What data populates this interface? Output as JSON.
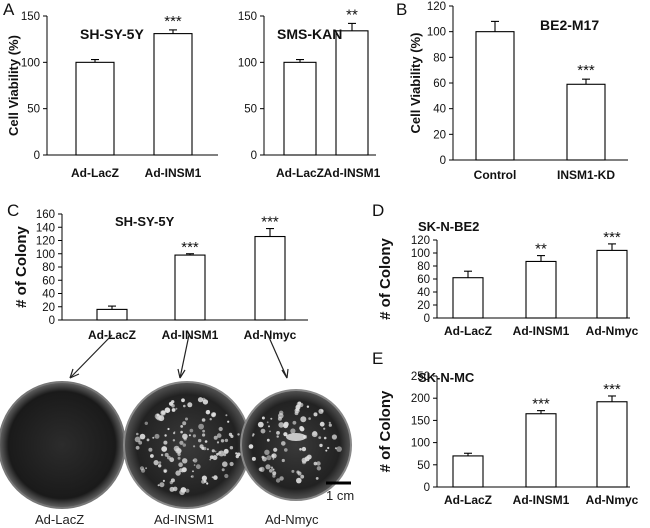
{
  "panel_letters": [
    "A",
    "B",
    "C",
    "D",
    "E"
  ],
  "chart_data": [
    {
      "id": "A1",
      "type": "bar",
      "title": "SH-SY-5Y",
      "ylabel": "Cell Viability (%)",
      "categories": [
        "Ad-LacZ",
        "Ad-INSM1"
      ],
      "values": [
        100,
        131
      ],
      "errors": [
        3,
        4
      ],
      "significance": [
        "",
        "***"
      ],
      "yticks": [
        0,
        50,
        100,
        150
      ],
      "ylim": [
        0,
        150
      ]
    },
    {
      "id": "A2",
      "type": "bar",
      "title": "SMS-KAN",
      "ylabel": "",
      "categories": [
        "Ad-LacZ",
        "Ad-INSM1"
      ],
      "values": [
        100,
        134
      ],
      "errors": [
        3,
        8
      ],
      "significance": [
        "",
        "**"
      ],
      "yticks": [
        0,
        50,
        100,
        150
      ],
      "ylim": [
        0,
        150
      ]
    },
    {
      "id": "B",
      "type": "bar",
      "title": "BE2-M17",
      "ylabel": "Cell Viability (%)",
      "categories": [
        "Control",
        "INSM1-KD"
      ],
      "values": [
        100,
        59
      ],
      "errors": [
        8,
        4
      ],
      "significance": [
        "",
        "***"
      ],
      "yticks": [
        0,
        20,
        40,
        60,
        80,
        100,
        120
      ],
      "ylim": [
        0,
        120
      ]
    },
    {
      "id": "C",
      "type": "bar",
      "title": "SH-SY-5Y",
      "ylabel": "# of Colony",
      "categories": [
        "Ad-LacZ",
        "Ad-INSM1",
        "Ad-Nmyc"
      ],
      "values": [
        16,
        98,
        126
      ],
      "errors": [
        5,
        2,
        12
      ],
      "significance": [
        "",
        "***",
        "***"
      ],
      "yticks": [
        0,
        20,
        40,
        60,
        80,
        100,
        120,
        140,
        160
      ],
      "ylim": [
        0,
        160
      ]
    },
    {
      "id": "D",
      "type": "bar",
      "title": "SK-N-BE2",
      "ylabel": "# of Colony",
      "categories": [
        "Ad-LacZ",
        "Ad-INSM1",
        "Ad-Nmyc"
      ],
      "values": [
        62,
        87,
        104
      ],
      "errors": [
        10,
        9,
        10
      ],
      "significance": [
        "",
        "**",
        "***"
      ],
      "yticks": [
        0,
        20,
        40,
        60,
        80,
        100,
        120
      ],
      "ylim": [
        0,
        120
      ]
    },
    {
      "id": "E",
      "type": "bar",
      "title": "SK-N-MC",
      "ylabel": "# of Colony",
      "categories": [
        "Ad-LacZ",
        "Ad-INSM1",
        "Ad-Nmyc"
      ],
      "values": [
        70,
        165,
        192
      ],
      "errors": [
        6,
        7,
        13
      ],
      "significance": [
        "",
        "***",
        "***"
      ],
      "yticks": [
        0,
        50,
        100,
        150,
        200,
        250
      ],
      "ylim": [
        0,
        250
      ]
    }
  ],
  "plates": {
    "labels": [
      "Ad-LacZ",
      "Ad-INSM1",
      "Ad-Nmyc"
    ],
    "scale_bar_label": "1 cm"
  }
}
